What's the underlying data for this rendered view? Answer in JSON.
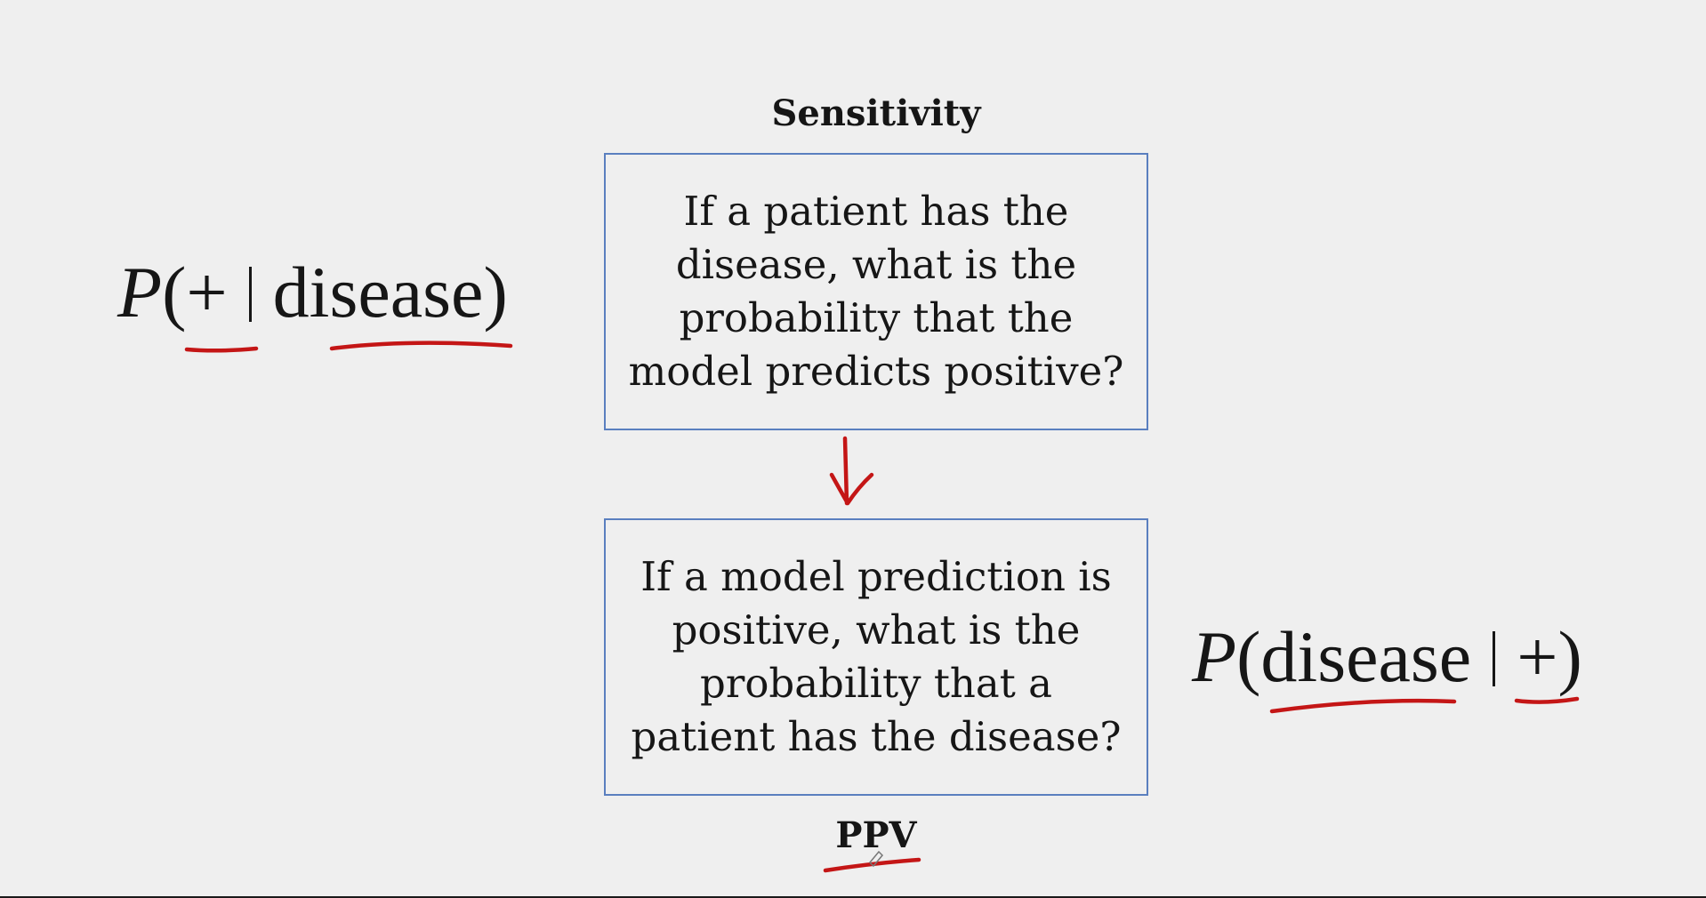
{
  "heading_top": "Sensitivity",
  "heading_bottom": "PPV",
  "box_top_text": "If a patient has the\ndisease, what is the\nprobability that the\nmodel predicts positive?",
  "box_bottom_text": "If a model prediction is\npositive, what is the\nprobability that a\npatient has the disease?",
  "formula_left": {
    "p": "P",
    "open": "(",
    "given_event": "+",
    "condition": "disease",
    "close": ")"
  },
  "formula_right": {
    "p": "P",
    "open": "(",
    "event": "disease",
    "condition": "+",
    "close": ")"
  },
  "colors": {
    "background": "#efefef",
    "box_border": "#5a7fbf",
    "annotation_red": "#c41616",
    "text": "#161616"
  }
}
